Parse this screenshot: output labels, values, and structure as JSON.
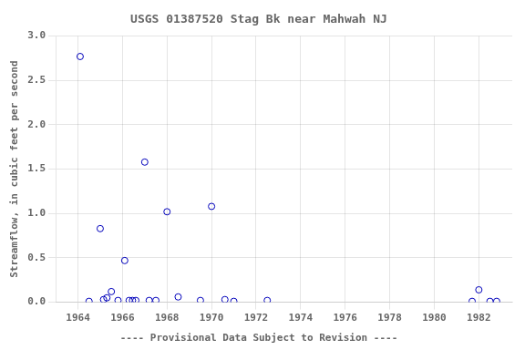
{
  "chart_data": {
    "type": "scatter",
    "title": "USGS 01387520 Stag Bk near Mahwah NJ",
    "ylabel": "Streamflow, in cubic feet per second",
    "annotations": [
      "---- Provisional Data Subject to Revision ----"
    ],
    "x": [
      1964.1,
      1964.5,
      1965.0,
      1965.15,
      1965.3,
      1965.5,
      1965.8,
      1966.1,
      1966.3,
      1966.45,
      1966.6,
      1967.0,
      1967.2,
      1967.5,
      1968.0,
      1968.5,
      1969.5,
      1970.0,
      1970.6,
      1971.0,
      1972.5,
      1981.7,
      1982.0,
      1982.5,
      1982.8
    ],
    "values": [
      2.77,
      0.01,
      0.83,
      0.03,
      0.05,
      0.12,
      0.02,
      0.47,
      0.02,
      0.02,
      0.02,
      1.58,
      0.02,
      0.02,
      1.02,
      0.06,
      0.02,
      1.08,
      0.03,
      0.01,
      0.02,
      0.01,
      0.14,
      0.01,
      0.01
    ],
    "color": "#0000bb",
    "marker": "circle",
    "xlim": [
      1963.0,
      1983.5
    ],
    "ylim": [
      0.0,
      3.0
    ],
    "xticks": [
      1964,
      1966,
      1968,
      1970,
      1972,
      1974,
      1976,
      1978,
      1980,
      1982
    ],
    "yticks": [
      {
        "value": 0,
        "label": "0.0"
      },
      0.5,
      {
        "value": 1,
        "label": "1.0"
      },
      1.5,
      {
        "value": 2,
        "label": "2.0"
      },
      2.5,
      {
        "value": 3,
        "label": "3.0"
      }
    ],
    "grid": true
  }
}
